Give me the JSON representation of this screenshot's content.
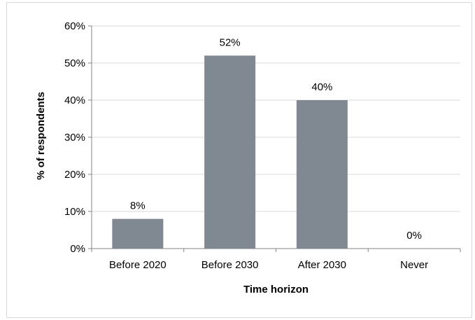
{
  "chart_data": {
    "type": "bar",
    "categories": [
      "Before 2020",
      "Before 2030",
      "After 2030",
      "Never"
    ],
    "values": [
      8,
      52,
      40,
      0
    ],
    "value_labels": [
      "8%",
      "52%",
      "40%",
      "0%"
    ],
    "xlabel": "Time horizon",
    "ylabel": "% of respondents",
    "ylim": [
      0,
      60
    ],
    "yticks": [
      0,
      10,
      20,
      30,
      40,
      50,
      60
    ],
    "ytick_labels": [
      "0%",
      "10%",
      "20%",
      "30%",
      "40%",
      "50%",
      "60%"
    ],
    "grid": true,
    "legend": "none",
    "bar_color": "#808891",
    "gridline_color": "#d9d9d9"
  }
}
